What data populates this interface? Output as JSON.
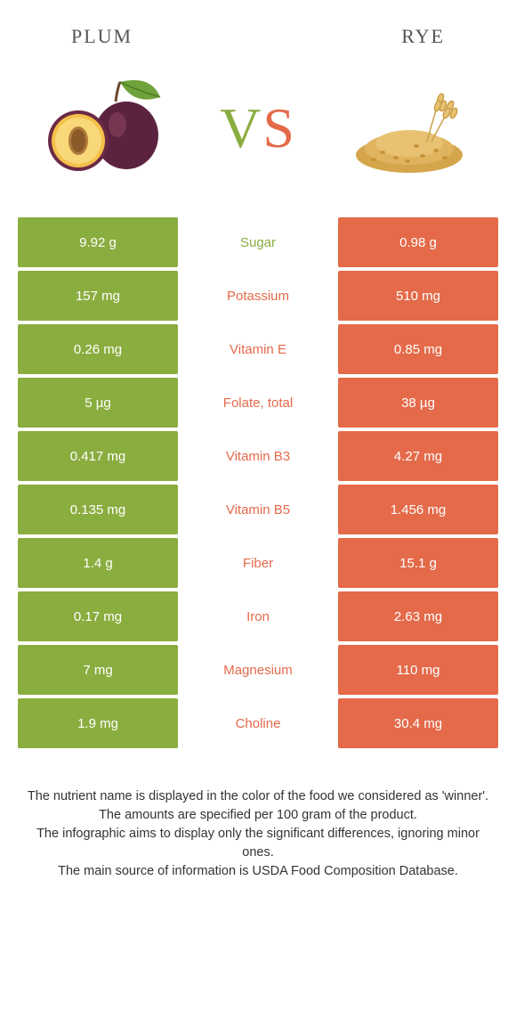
{
  "header": {
    "left": "Plum",
    "right": "Rye"
  },
  "vs": {
    "v": "V",
    "s": "S"
  },
  "colors": {
    "left_bg": "#8aad3f",
    "right_bg": "#e46a4a",
    "mid_left_text": "#8aad3f",
    "mid_right_text": "#e46a4a",
    "body_bg": "#ffffff",
    "footer_text": "#333333"
  },
  "rows": [
    {
      "left": "9.92 g",
      "label": "Sugar",
      "right": "0.98 g",
      "winner": "left"
    },
    {
      "left": "157 mg",
      "label": "Potassium",
      "right": "510 mg",
      "winner": "right"
    },
    {
      "left": "0.26 mg",
      "label": "Vitamin E",
      "right": "0.85 mg",
      "winner": "right"
    },
    {
      "left": "5 µg",
      "label": "Folate, total",
      "right": "38 µg",
      "winner": "right"
    },
    {
      "left": "0.417 mg",
      "label": "Vitamin B3",
      "right": "4.27 mg",
      "winner": "right"
    },
    {
      "left": "0.135 mg",
      "label": "Vitamin B5",
      "right": "1.456 mg",
      "winner": "right"
    },
    {
      "left": "1.4 g",
      "label": "Fiber",
      "right": "15.1 g",
      "winner": "right"
    },
    {
      "left": "0.17 mg",
      "label": "Iron",
      "right": "2.63 mg",
      "winner": "right"
    },
    {
      "left": "7 mg",
      "label": "Magnesium",
      "right": "110 mg",
      "winner": "right"
    },
    {
      "left": "1.9 mg",
      "label": "Choline",
      "right": "30.4 mg",
      "winner": "right"
    }
  ],
  "footer": {
    "line1": "The nutrient name is displayed in the color of the food we considered as 'winner'.",
    "line2": "The amounts are specified per 100 gram of the product.",
    "line3": "The infographic aims to display only the significant differences, ignoring minor ones.",
    "line4": "The main source of information is USDA Food Composition Database."
  }
}
